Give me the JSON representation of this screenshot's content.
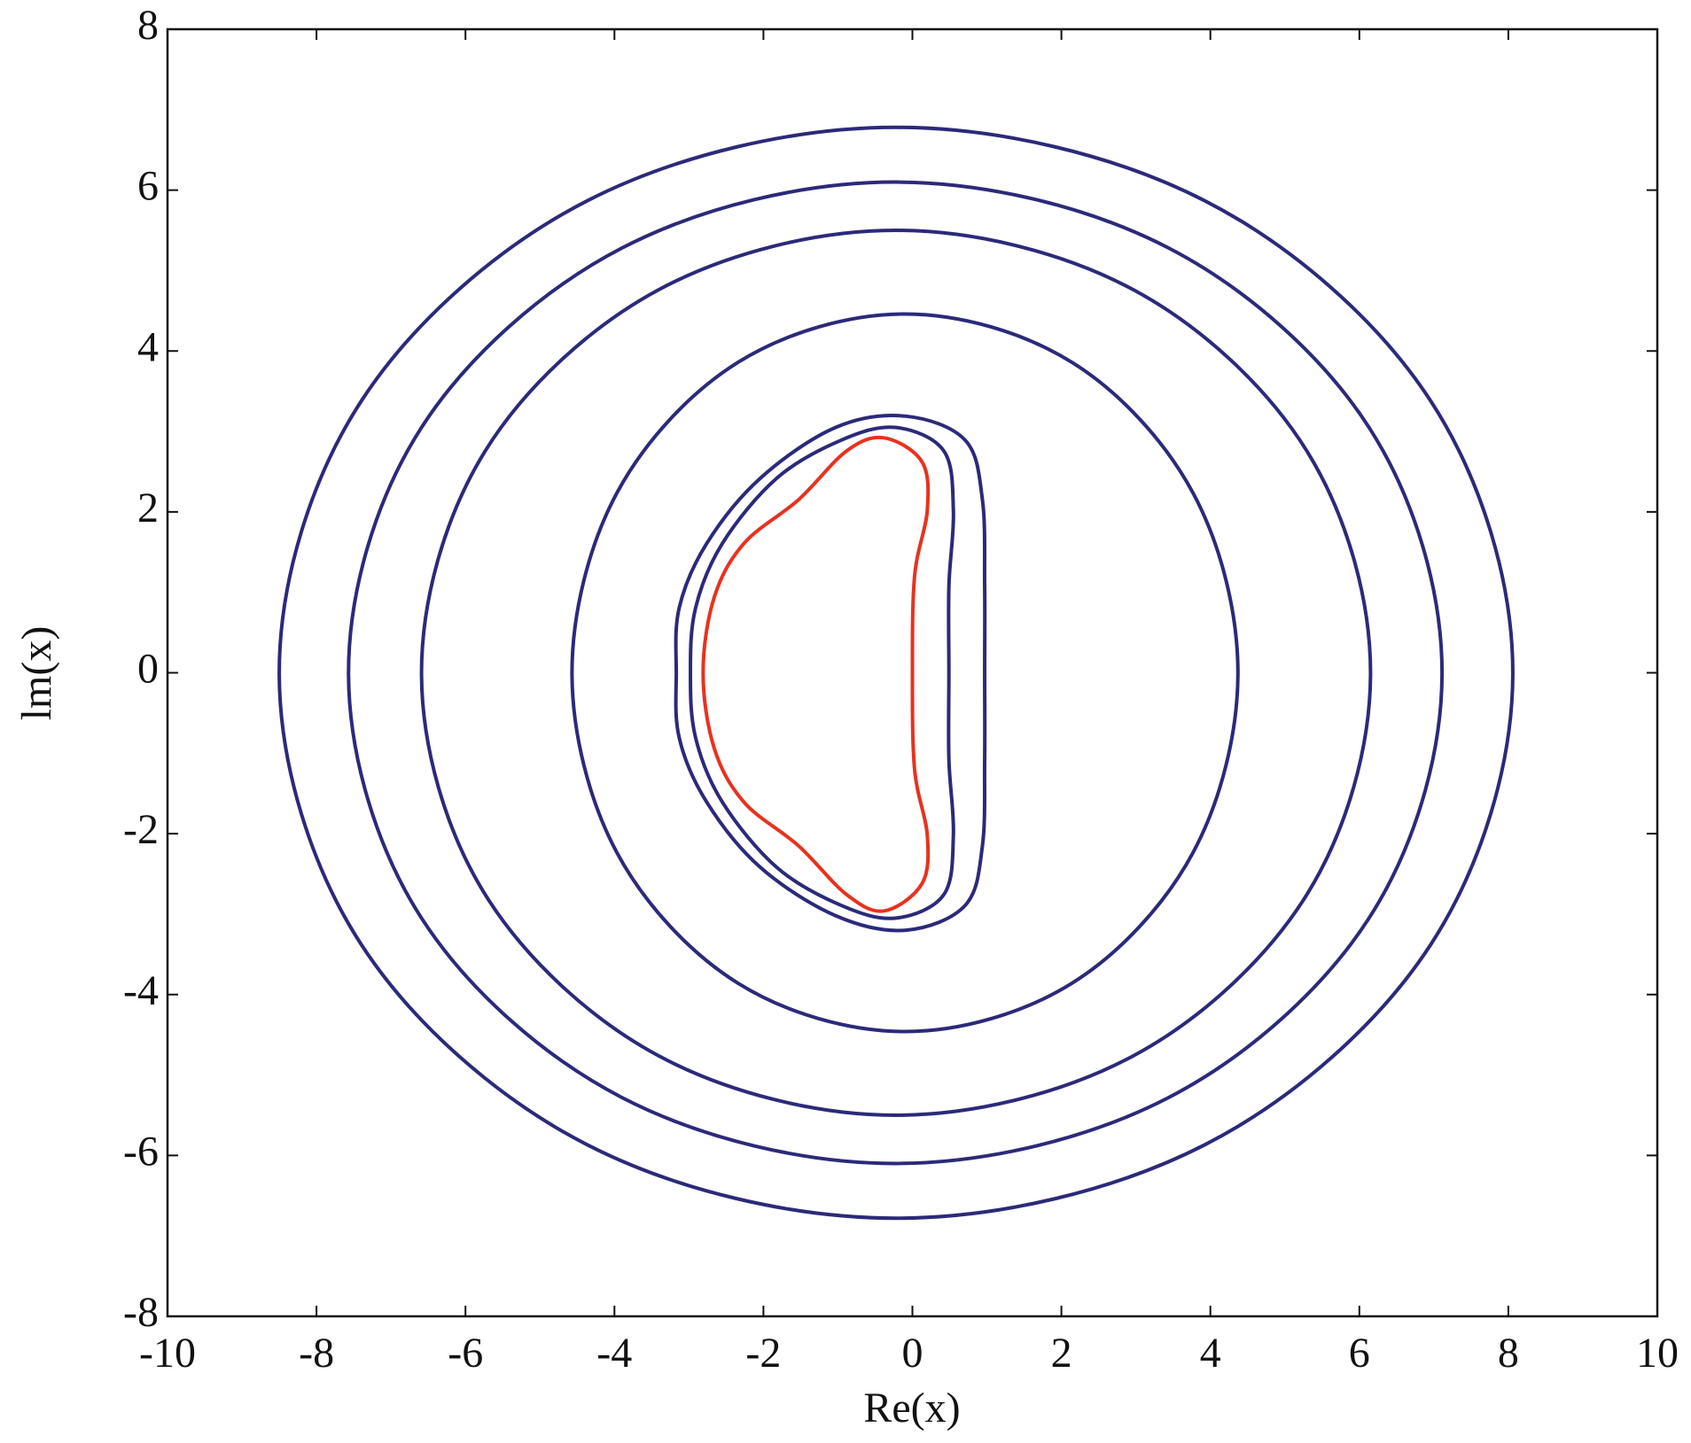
{
  "chart_data": {
    "type": "line",
    "xlabel": "Re(x)",
    "ylabel": "lm(x)",
    "xlim": [
      -10,
      10
    ],
    "ylim": [
      -8,
      8
    ],
    "xticks": [
      -10,
      -8,
      -6,
      -4,
      -2,
      0,
      2,
      4,
      6,
      8,
      10
    ],
    "yticks": [
      -8,
      -6,
      -4,
      -2,
      0,
      2,
      4,
      6,
      8
    ],
    "closed": true,
    "series": [
      {
        "color": "#2b2a7a",
        "x": [
          8.06,
          6.95,
          3.92,
          -0.22,
          -4.36,
          -7.39,
          -8.5,
          -7.39,
          -4.36,
          -0.22,
          3.92,
          6.95
        ],
        "y": [
          0,
          3.39,
          5.87,
          6.78,
          5.87,
          3.39,
          0,
          -3.39,
          -5.87,
          -6.78,
          -5.87,
          -3.39
        ]
      },
      {
        "color": "#2b2a7a",
        "x": [
          7.11,
          6.13,
          3.44,
          -0.23,
          -3.9,
          -6.59,
          -7.57,
          -6.59,
          -3.9,
          -0.23,
          3.44,
          6.13
        ],
        "y": [
          0,
          3.05,
          5.28,
          6.1,
          5.28,
          3.05,
          0,
          -3.05,
          -5.28,
          -6.1,
          -5.28,
          -3.05
        ]
      },
      {
        "color": "#2b2a7a",
        "x": [
          6.15,
          5.3,
          2.97,
          -0.22,
          -3.41,
          -5.74,
          -6.59,
          -5.74,
          -3.41,
          -0.22,
          2.97,
          5.3
        ],
        "y": [
          0,
          2.75,
          4.76,
          5.5,
          4.76,
          2.75,
          0,
          -2.75,
          -4.76,
          -5.5,
          -4.76,
          -2.75
        ]
      },
      {
        "color": "#2b2a7a",
        "x": [
          4.37,
          3.77,
          2.14,
          -0.1,
          -2.34,
          -3.97,
          -4.57,
          -3.97,
          -2.34,
          -0.1,
          2.14,
          3.77
        ],
        "y": [
          0,
          2.23,
          3.86,
          4.46,
          3.86,
          2.23,
          0,
          -2.23,
          -3.86,
          -4.46,
          -3.86,
          -2.23
        ]
      },
      {
        "color": "#2b2a7a",
        "x": [
          -0.09,
          0.71,
          0.94,
          0.97,
          0.97,
          0.97,
          0.94,
          0.71,
          -0.09,
          -1.03,
          -2.04,
          -2.76,
          -3.13,
          -3.17,
          -3.13,
          -2.76,
          -2.04,
          -1.03
        ],
        "y": [
          3.19,
          2.89,
          2.15,
          1.08,
          0,
          -1.08,
          -2.15,
          -2.89,
          -3.2,
          -3.02,
          -2.42,
          -1.61,
          -0.81,
          0,
          0.81,
          1.61,
          2.42,
          3.05
        ]
      },
      {
        "color": "#2b2a7a",
        "x": [
          -0.23,
          0.42,
          0.55,
          0.49,
          0.49,
          0.49,
          0.55,
          0.42,
          -0.23,
          -0.96,
          -1.82,
          -2.55,
          -2.91,
          -2.98,
          -2.91,
          -2.55,
          -1.82,
          -0.96
        ],
        "y": [
          3.05,
          2.76,
          2.02,
          1.08,
          0,
          -1.08,
          -2.02,
          -2.76,
          -3.05,
          -2.89,
          -2.42,
          -1.61,
          -0.81,
          0,
          0.81,
          1.61,
          2.42,
          2.89
        ]
      },
      {
        "color": "#e8321e",
        "x": [
          -0.38,
          0.13,
          0.2,
          0.03,
          0,
          0.03,
          0.2,
          0.13,
          -0.38,
          -0.88,
          -1.53,
          -2.26,
          -2.66,
          -2.81,
          -2.66,
          -2.26,
          -1.53,
          -0.88
        ],
        "y": [
          2.92,
          2.62,
          2.02,
          1.21,
          0,
          -1.21,
          -2.02,
          -2.62,
          -2.96,
          -2.76,
          -2.15,
          -1.61,
          -0.94,
          0,
          0.94,
          1.61,
          2.15,
          2.76
        ]
      }
    ]
  }
}
